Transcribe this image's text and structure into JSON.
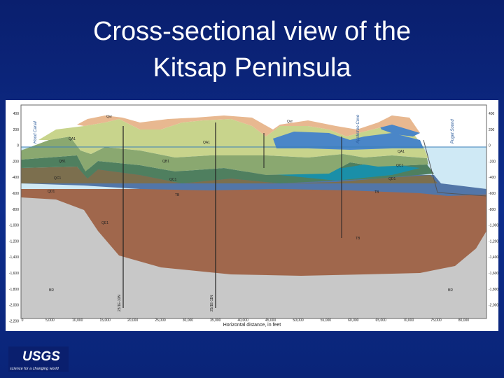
{
  "title": {
    "lines": [
      "Cross-sectional view of the",
      "Kitsap Peninsula"
    ]
  },
  "section": {
    "x_axis": {
      "label": "Horizontal distance, in feet",
      "ticks": [
        "0",
        "5,000",
        "10,000",
        "15,000",
        "20,000",
        "25,000",
        "30,000",
        "35,000",
        "40,000",
        "45,000",
        "50,000",
        "55,000",
        "60,000",
        "65,000",
        "70,000",
        "75,000",
        "80,000"
      ]
    },
    "left_axis": {
      "ticks": [
        "400",
        "200",
        "0",
        "-200",
        "-400",
        "-600",
        "-800",
        "-1,000",
        "-1,200",
        "-1,400",
        "-1,600",
        "-1,800",
        "-2,000",
        "-2,200"
      ]
    },
    "right_axis": {
      "ticks": [
        "400",
        "200",
        "0",
        "-200",
        "-400",
        "-600",
        "-800",
        "-1,000",
        "-1,200",
        "-1,400",
        "-1,600",
        "-1,800",
        "-2,000"
      ]
    },
    "places": [
      "Hood Canal",
      "Appletree Cove",
      "Puget Sound"
    ],
    "wells": [
      "23/1E-10N",
      "25/1E-11N"
    ],
    "units": [
      "Qvr",
      "QA1",
      "QB1",
      "QC1",
      "QD1",
      "QE1",
      "QA1",
      "QB1",
      "QC1",
      "Qvr",
      "QA1",
      "QC1",
      "QD1",
      "TB",
      "TB",
      "TB",
      "BR",
      "BR"
    ]
  },
  "logo": {
    "name": "USGS",
    "tagline": "science for a changing world"
  }
}
